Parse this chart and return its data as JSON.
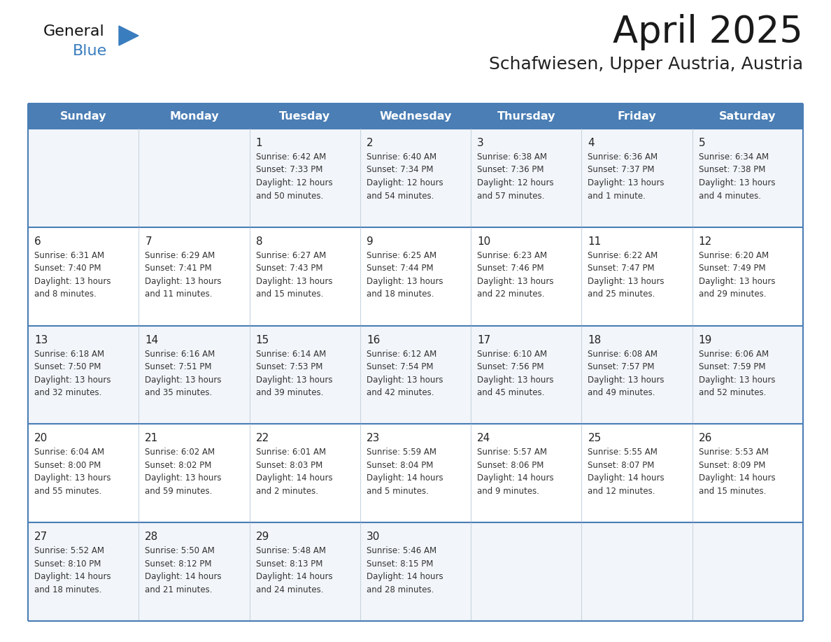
{
  "title": "April 2025",
  "subtitle": "Schafwiesen, Upper Austria, Austria",
  "days_of_week": [
    "Sunday",
    "Monday",
    "Tuesday",
    "Wednesday",
    "Thursday",
    "Friday",
    "Saturday"
  ],
  "header_bg_color": "#4a7eb5",
  "header_text_color": "#ffffff",
  "cell_bg_light": "#f2f5f9",
  "cell_bg_white": "#ffffff",
  "row_line_color": "#4a7eb5",
  "day_number_color": "#222222",
  "text_color": "#333333",
  "title_color": "#1a1a1a",
  "subtitle_color": "#222222",
  "logo_general_color": "#111111",
  "logo_blue_color": "#3a7dbf",
  "weeks": [
    {
      "days": [
        {
          "date": "",
          "sunrise": "",
          "sunset": "",
          "daylight": ""
        },
        {
          "date": "",
          "sunrise": "",
          "sunset": "",
          "daylight": ""
        },
        {
          "date": "1",
          "sunrise": "6:42 AM",
          "sunset": "7:33 PM",
          "daylight": "12 hours and 50 minutes."
        },
        {
          "date": "2",
          "sunrise": "6:40 AM",
          "sunset": "7:34 PM",
          "daylight": "12 hours and 54 minutes."
        },
        {
          "date": "3",
          "sunrise": "6:38 AM",
          "sunset": "7:36 PM",
          "daylight": "12 hours and 57 minutes."
        },
        {
          "date": "4",
          "sunrise": "6:36 AM",
          "sunset": "7:37 PM",
          "daylight": "13 hours and 1 minute."
        },
        {
          "date": "5",
          "sunrise": "6:34 AM",
          "sunset": "7:38 PM",
          "daylight": "13 hours and 4 minutes."
        }
      ]
    },
    {
      "days": [
        {
          "date": "6",
          "sunrise": "6:31 AM",
          "sunset": "7:40 PM",
          "daylight": "13 hours and 8 minutes."
        },
        {
          "date": "7",
          "sunrise": "6:29 AM",
          "sunset": "7:41 PM",
          "daylight": "13 hours and 11 minutes."
        },
        {
          "date": "8",
          "sunrise": "6:27 AM",
          "sunset": "7:43 PM",
          "daylight": "13 hours and 15 minutes."
        },
        {
          "date": "9",
          "sunrise": "6:25 AM",
          "sunset": "7:44 PM",
          "daylight": "13 hours and 18 minutes."
        },
        {
          "date": "10",
          "sunrise": "6:23 AM",
          "sunset": "7:46 PM",
          "daylight": "13 hours and 22 minutes."
        },
        {
          "date": "11",
          "sunrise": "6:22 AM",
          "sunset": "7:47 PM",
          "daylight": "13 hours and 25 minutes."
        },
        {
          "date": "12",
          "sunrise": "6:20 AM",
          "sunset": "7:49 PM",
          "daylight": "13 hours and 29 minutes."
        }
      ]
    },
    {
      "days": [
        {
          "date": "13",
          "sunrise": "6:18 AM",
          "sunset": "7:50 PM",
          "daylight": "13 hours and 32 minutes."
        },
        {
          "date": "14",
          "sunrise": "6:16 AM",
          "sunset": "7:51 PM",
          "daylight": "13 hours and 35 minutes."
        },
        {
          "date": "15",
          "sunrise": "6:14 AM",
          "sunset": "7:53 PM",
          "daylight": "13 hours and 39 minutes."
        },
        {
          "date": "16",
          "sunrise": "6:12 AM",
          "sunset": "7:54 PM",
          "daylight": "13 hours and 42 minutes."
        },
        {
          "date": "17",
          "sunrise": "6:10 AM",
          "sunset": "7:56 PM",
          "daylight": "13 hours and 45 minutes."
        },
        {
          "date": "18",
          "sunrise": "6:08 AM",
          "sunset": "7:57 PM",
          "daylight": "13 hours and 49 minutes."
        },
        {
          "date": "19",
          "sunrise": "6:06 AM",
          "sunset": "7:59 PM",
          "daylight": "13 hours and 52 minutes."
        }
      ]
    },
    {
      "days": [
        {
          "date": "20",
          "sunrise": "6:04 AM",
          "sunset": "8:00 PM",
          "daylight": "13 hours and 55 minutes."
        },
        {
          "date": "21",
          "sunrise": "6:02 AM",
          "sunset": "8:02 PM",
          "daylight": "13 hours and 59 minutes."
        },
        {
          "date": "22",
          "sunrise": "6:01 AM",
          "sunset": "8:03 PM",
          "daylight": "14 hours and 2 minutes."
        },
        {
          "date": "23",
          "sunrise": "5:59 AM",
          "sunset": "8:04 PM",
          "daylight": "14 hours and 5 minutes."
        },
        {
          "date": "24",
          "sunrise": "5:57 AM",
          "sunset": "8:06 PM",
          "daylight": "14 hours and 9 minutes."
        },
        {
          "date": "25",
          "sunrise": "5:55 AM",
          "sunset": "8:07 PM",
          "daylight": "14 hours and 12 minutes."
        },
        {
          "date": "26",
          "sunrise": "5:53 AM",
          "sunset": "8:09 PM",
          "daylight": "14 hours and 15 minutes."
        }
      ]
    },
    {
      "days": [
        {
          "date": "27",
          "sunrise": "5:52 AM",
          "sunset": "8:10 PM",
          "daylight": "14 hours and 18 minutes."
        },
        {
          "date": "28",
          "sunrise": "5:50 AM",
          "sunset": "8:12 PM",
          "daylight": "14 hours and 21 minutes."
        },
        {
          "date": "29",
          "sunrise": "5:48 AM",
          "sunset": "8:13 PM",
          "daylight": "14 hours and 24 minutes."
        },
        {
          "date": "30",
          "sunrise": "5:46 AM",
          "sunset": "8:15 PM",
          "daylight": "14 hours and 28 minutes."
        },
        {
          "date": "",
          "sunrise": "",
          "sunset": "",
          "daylight": ""
        },
        {
          "date": "",
          "sunrise": "",
          "sunset": "",
          "daylight": ""
        },
        {
          "date": "",
          "sunrise": "",
          "sunset": "",
          "daylight": ""
        }
      ]
    }
  ]
}
